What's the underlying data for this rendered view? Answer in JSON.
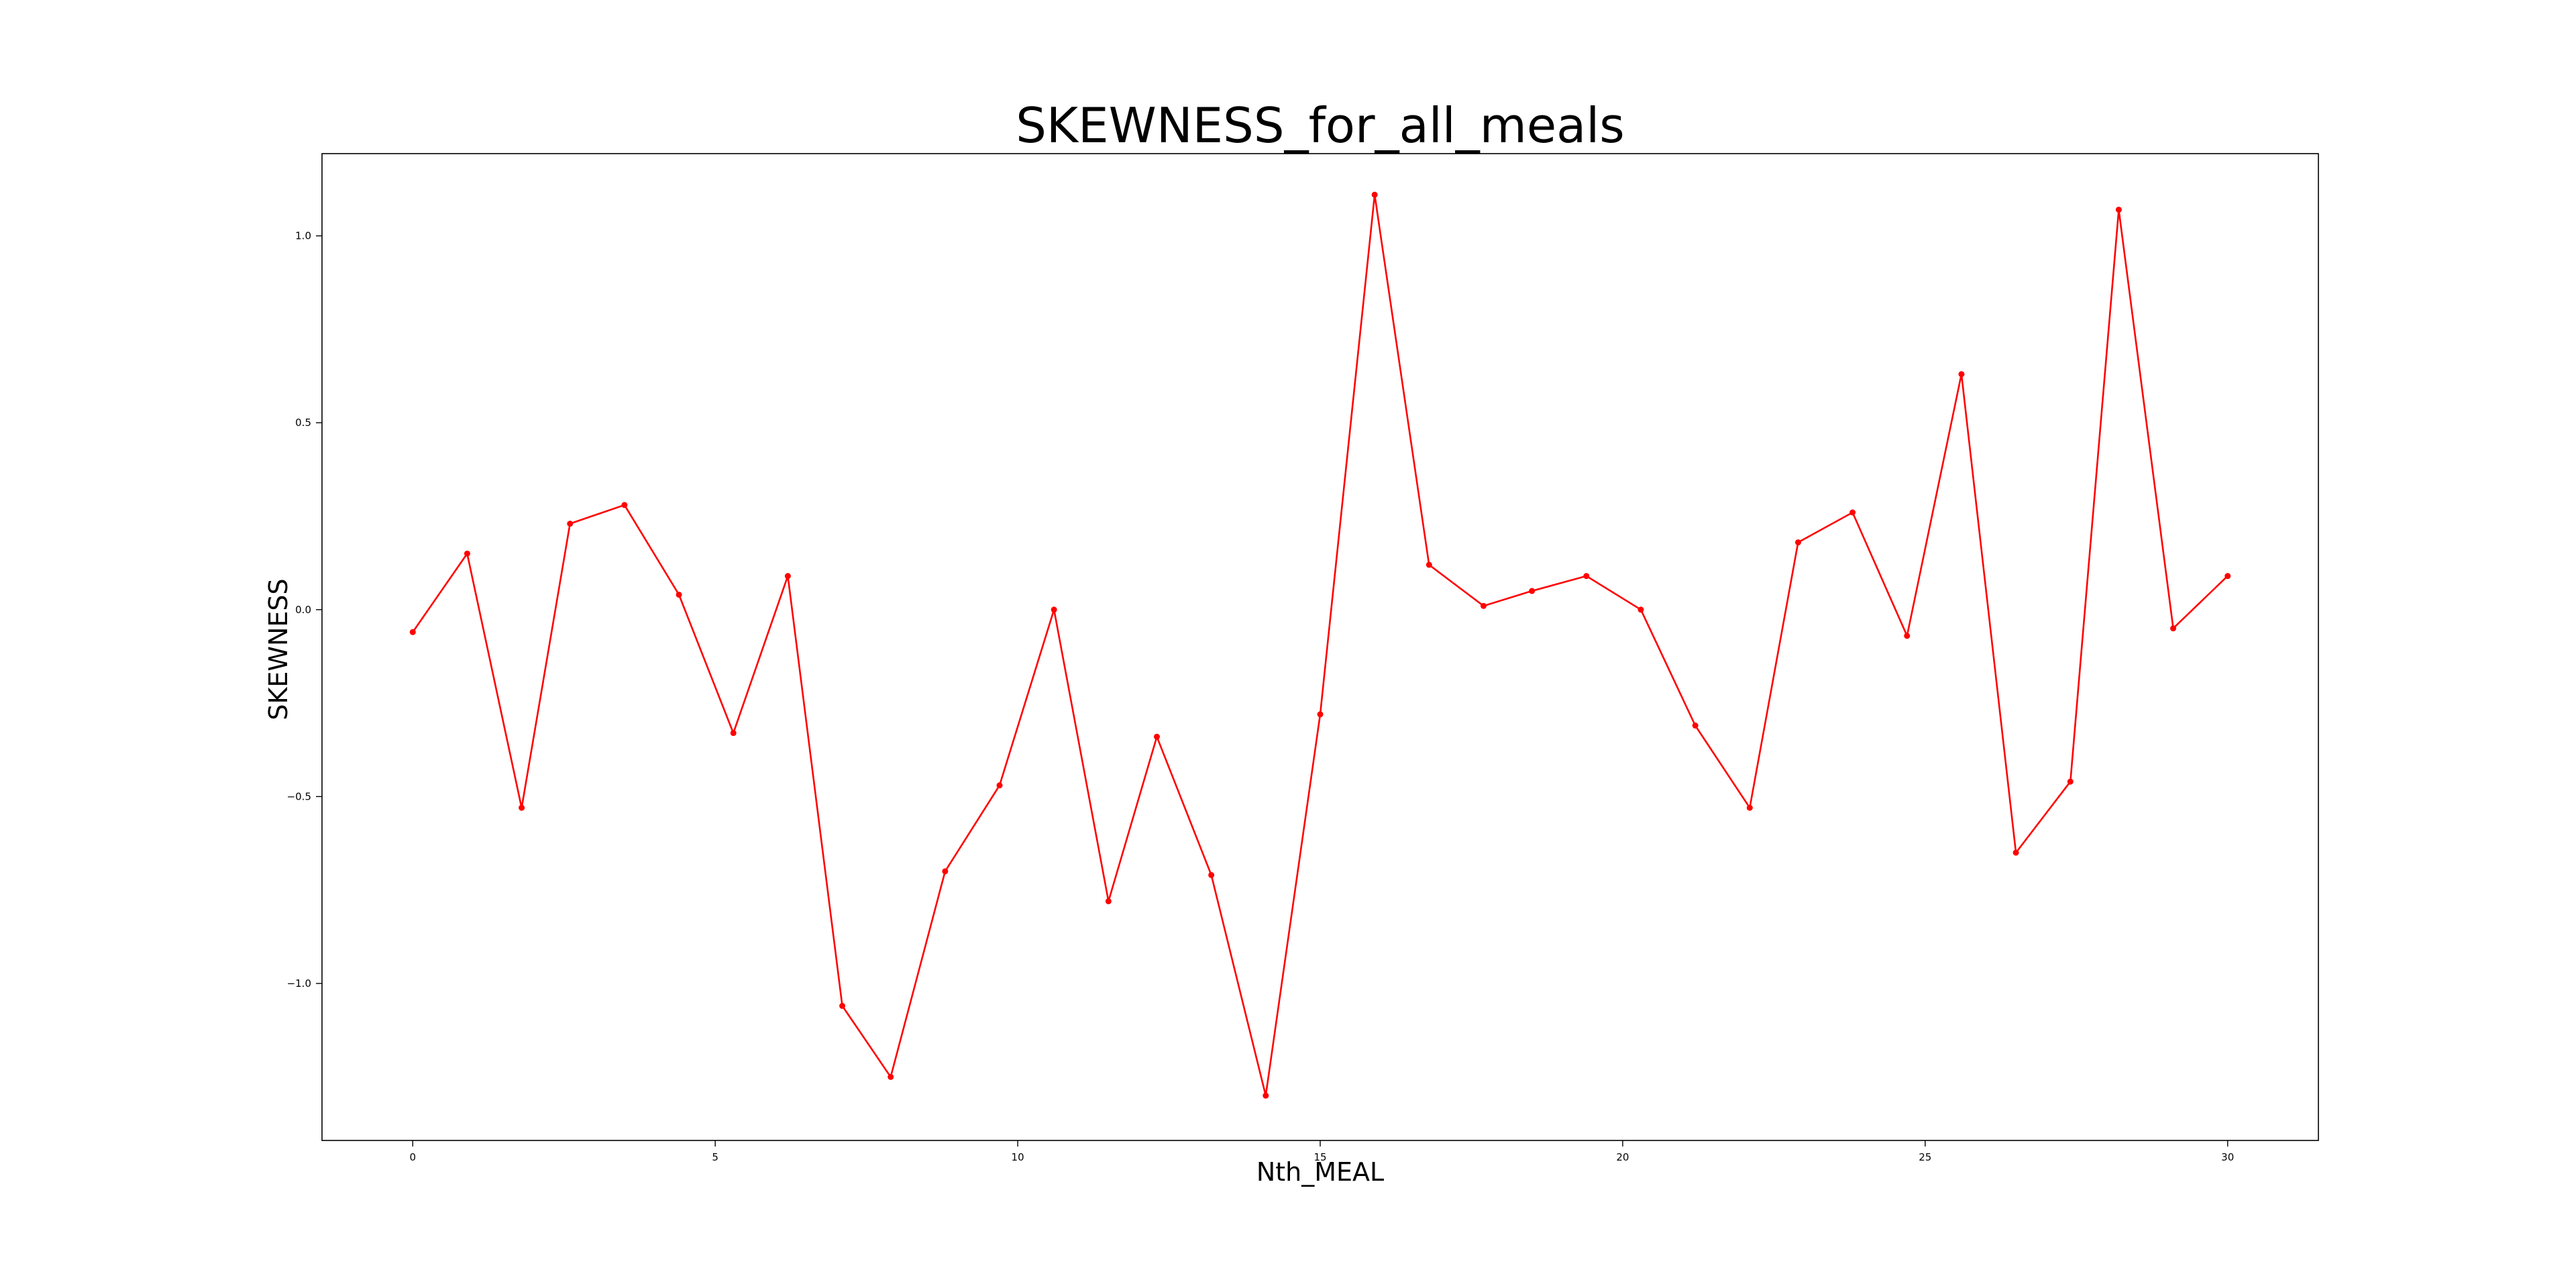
{
  "chart_data": {
    "type": "line",
    "title": "SKEWNESS_for_all_meals",
    "xlabel": "Nth_MEAL",
    "ylabel": "SKEWNESS",
    "xlim": [
      -1.5,
      31.5
    ],
    "ylim": [
      -1.42,
      1.22
    ],
    "xticks": [
      0,
      5,
      10,
      15,
      20,
      25,
      30
    ],
    "xtick_labels": [
      "0",
      "5",
      "10",
      "15",
      "20",
      "25",
      "30"
    ],
    "yticks": [
      1.0,
      0.5,
      0.0,
      -0.5,
      -1.0
    ],
    "ytick_labels": [
      "1.0",
      "0.5",
      "0.0",
      "−0.5",
      "−1.0"
    ],
    "grid": false,
    "legend": "none",
    "series": [
      {
        "color": "#ff0000",
        "marker": "circle",
        "x": [
          0,
          0.9,
          1.8,
          2.6,
          3.5,
          4.4,
          5.3,
          6.2,
          7.1,
          7.9,
          8.8,
          9.7,
          10.6,
          11.5,
          12.3,
          13.2,
          14.1,
          15.0,
          15.9,
          16.8,
          17.7,
          18.5,
          19.4,
          20.3,
          21.2,
          22.1,
          22.9,
          23.8,
          24.7,
          25.6,
          26.5,
          27.4,
          28.2,
          29.1,
          30.0
        ],
        "y": [
          -0.06,
          0.15,
          -0.53,
          0.23,
          0.28,
          0.04,
          -0.33,
          0.09,
          -1.06,
          -1.25,
          -0.7,
          -0.47,
          0.0,
          -0.78,
          -0.34,
          -0.71,
          -1.3,
          -0.28,
          1.11,
          0.12,
          0.01,
          0.05,
          0.09,
          0.0,
          -0.31,
          -0.53,
          0.18,
          0.26,
          -0.07,
          0.63,
          -0.65,
          -0.46,
          1.07,
          -0.05,
          0.09
        ]
      }
    ]
  }
}
